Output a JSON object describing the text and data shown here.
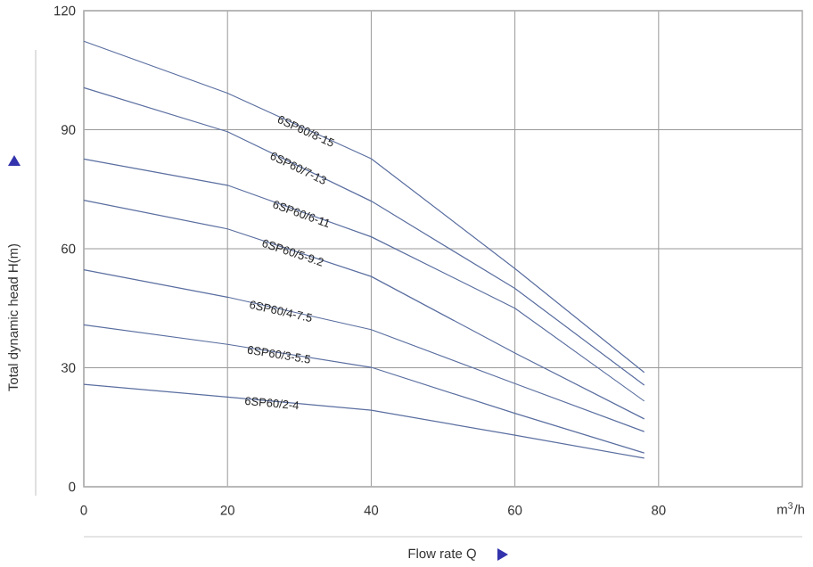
{
  "chart_data": {
    "type": "line",
    "xlabel": "Flow rate Q",
    "ylabel": "Total dynamic head H(m)",
    "xlim": [
      0,
      100
    ],
    "ylim": [
      0,
      120
    ],
    "xticks": [
      0,
      20,
      40,
      60,
      80
    ],
    "yticks": [
      0,
      30,
      60,
      90,
      120
    ],
    "grid": true,
    "marker": "none",
    "line_style": "solid",
    "x": [
      0,
      20,
      40,
      60,
      78
    ],
    "series": [
      {
        "name": "6SP60/8-15",
        "color": "#5a6ea0",
        "values": [
          112.3,
          99.2,
          82.7,
          55,
          28.8
        ]
      },
      {
        "name": "6SP60/7-13",
        "color": "#5a6ea0",
        "values": [
          100.6,
          89.5,
          72,
          50,
          25.6
        ]
      },
      {
        "name": "6SP60/6-11",
        "color": "#5a6ea0",
        "values": [
          82.6,
          76,
          63,
          45,
          21.6
        ]
      },
      {
        "name": "6SP60/5-9.2",
        "color": "#5a6ea0",
        "values": [
          72.2,
          65,
          53,
          33.7,
          17.1
        ]
      },
      {
        "name": "6SP60/4-7.5",
        "color": "#5a6ea0",
        "values": [
          54.7,
          47.8,
          39.6,
          26,
          13.9
        ]
      },
      {
        "name": "6SP60/3-5.5",
        "color": "#5a6ea0",
        "values": [
          40.8,
          35.9,
          30.1,
          18.5,
          8.5
        ]
      },
      {
        "name": "6SP60/2-4",
        "color": "#5a6ea0",
        "values": [
          25.8,
          22.6,
          19.3,
          13,
          7.2
        ]
      }
    ],
    "annotations": [
      "m$^{3}$/h"
    ]
  }
}
